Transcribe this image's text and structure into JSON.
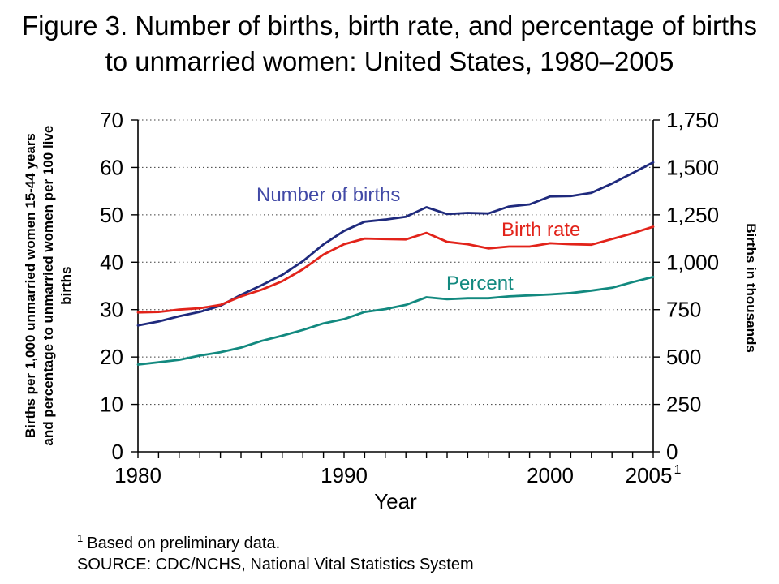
{
  "title": "Figure 3. Number of births, birth rate, and percentage of births to unmarried women: United States, 1980–2005",
  "footnote": {
    "marker": "1",
    "text": "Based on preliminary data."
  },
  "source": "SOURCE: CDC/NCHS, National Vital Statistics System",
  "chart_data": {
    "type": "line",
    "title": "Figure 3. Number of births, birth rate, and percentage of births to unmarried women: United States, 1980–2005",
    "xlabel": "Year",
    "grid": "horizontal dotted",
    "legend_position": "inline labels on chart",
    "x": [
      1980,
      1981,
      1982,
      1983,
      1984,
      1985,
      1986,
      1987,
      1988,
      1989,
      1990,
      1991,
      1992,
      1993,
      1994,
      1995,
      1996,
      1997,
      1998,
      1999,
      2000,
      2001,
      2002,
      2003,
      2004,
      2005
    ],
    "x_axis": {
      "min": 1980,
      "max": 2005,
      "tick_labels": [
        {
          "year": 1980,
          "label": "1980"
        },
        {
          "year": 1990,
          "label": "1990"
        },
        {
          "year": 2000,
          "label": "2000"
        },
        {
          "year": 2005,
          "label": "2005",
          "superscript": "1"
        }
      ]
    },
    "left_axis": {
      "label": "Births per 1,000 unmarried women 15-44 years and percentage to unmarried women per 100 live births",
      "min": 0,
      "max": 70,
      "ticks": [
        0,
        10,
        20,
        30,
        40,
        50,
        60,
        70
      ]
    },
    "right_axis": {
      "label": "Births in thousands",
      "min": 0,
      "max": 1750,
      "ticks": [
        0,
        250,
        500,
        750,
        1000,
        1250,
        1500,
        1750
      ],
      "tick_labels": [
        "0",
        "250",
        "500",
        "750",
        "1,000",
        "1,250",
        "1,500",
        "1,750"
      ]
    },
    "series": [
      {
        "name": "Number of births",
        "axis": "right",
        "color": "#1f2a7d",
        "label_color": "#4149a6",
        "values": [
          666,
          687,
          715,
          738,
          770,
          828,
          879,
          933,
          1005,
          1094,
          1165,
          1214,
          1225,
          1240,
          1290,
          1254,
          1260,
          1257,
          1294,
          1305,
          1347,
          1349,
          1366,
          1415,
          1470,
          1527
        ]
      },
      {
        "name": "Birth rate",
        "axis": "left",
        "color": "#e2231a",
        "label_color": "#e2231a",
        "values": [
          29.4,
          29.5,
          30.0,
          30.3,
          31.0,
          32.8,
          34.2,
          36.0,
          38.5,
          41.6,
          43.8,
          45.0,
          44.9,
          44.8,
          46.2,
          44.3,
          43.8,
          42.9,
          43.3,
          43.3,
          44.0,
          43.8,
          43.7,
          44.9,
          46.1,
          47.5
        ]
      },
      {
        "name": "Percent",
        "axis": "left",
        "color": "#12897f",
        "label_color": "#12897f",
        "values": [
          18.4,
          18.9,
          19.4,
          20.3,
          21.0,
          22.0,
          23.4,
          24.5,
          25.7,
          27.1,
          28.0,
          29.5,
          30.1,
          31.0,
          32.6,
          32.2,
          32.4,
          32.4,
          32.8,
          33.0,
          33.2,
          33.5,
          34.0,
          34.6,
          35.8,
          36.9
        ]
      }
    ]
  }
}
